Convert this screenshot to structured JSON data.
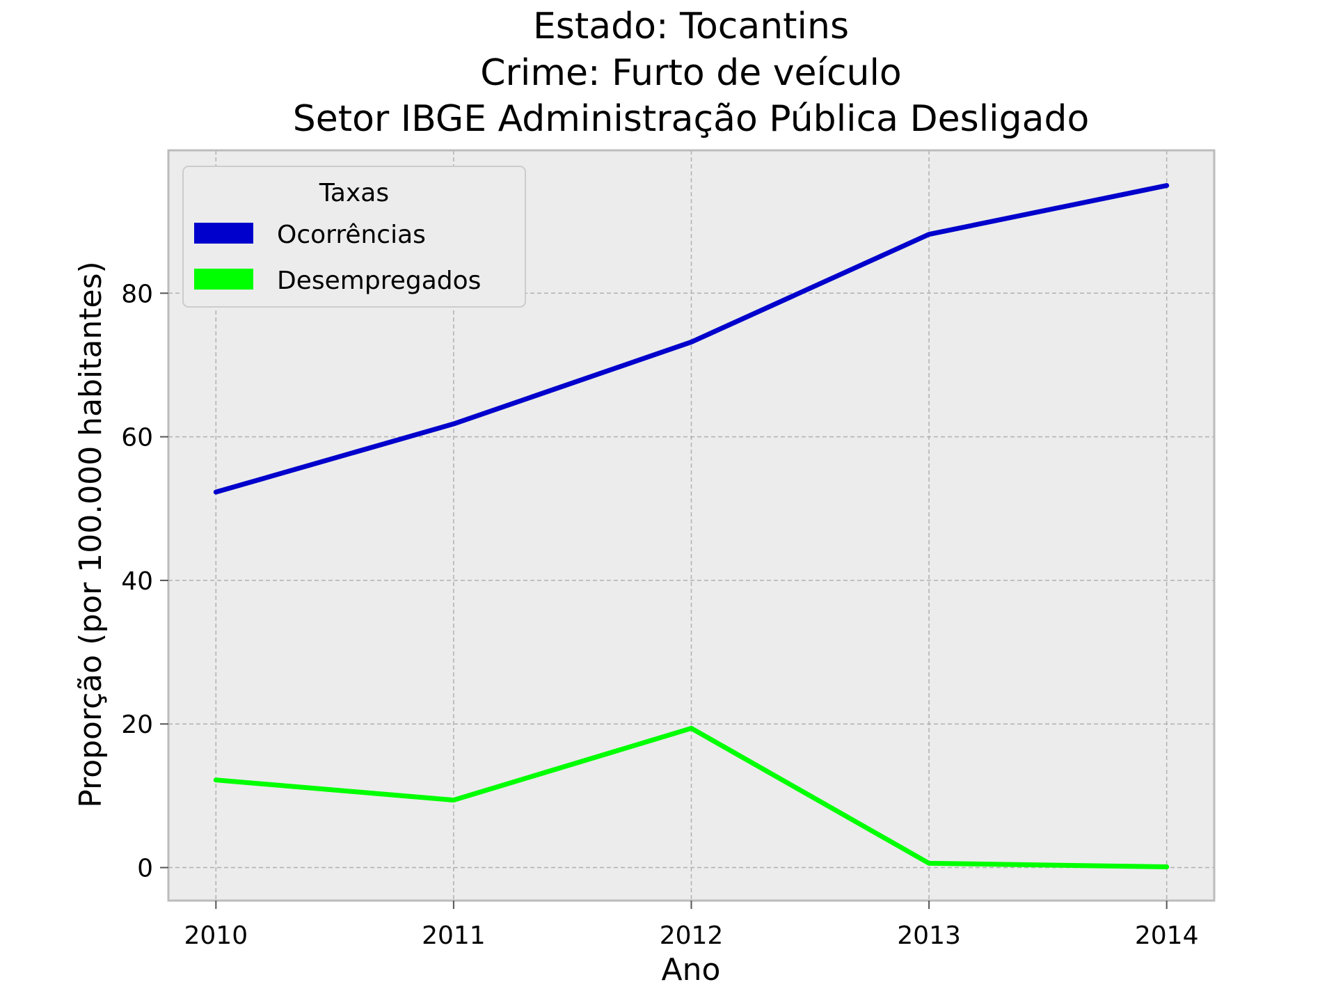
{
  "chart_data": {
    "type": "line",
    "title_lines": [
      "Estado: Tocantins",
      "Crime: Furto de veículo",
      "Setor IBGE  Administração Pública   Desligado"
    ],
    "xlabel": "Ano",
    "ylabel": "Proporção (por 100.000 habitantes)",
    "x": [
      2010,
      2011,
      2012,
      2013,
      2014
    ],
    "x_tick_labels": [
      "2010",
      "2011",
      "2012",
      "2013",
      "2014"
    ],
    "y_ticks": [
      0,
      20,
      40,
      60,
      80
    ],
    "y_tick_labels": [
      "0",
      "20",
      "40",
      "60",
      "80"
    ],
    "xlim": [
      2009.8,
      2014.2
    ],
    "ylim": [
      -4.6,
      99.9
    ],
    "grid": true,
    "legend": {
      "title": "Taxas",
      "placement": "upper-left"
    },
    "series": [
      {
        "name": "Ocorrências",
        "color": "#0000cc",
        "values": [
          52.3,
          61.8,
          73.2,
          88.2,
          95.0
        ]
      },
      {
        "name": "Desempregados",
        "color": "#00ff00",
        "values": [
          12.2,
          9.4,
          19.4,
          0.6,
          0.1
        ]
      }
    ],
    "colors": {
      "plot_background": "#ececec",
      "grid": "#b0b0b0",
      "axes_border": "#bcbcbc"
    }
  }
}
